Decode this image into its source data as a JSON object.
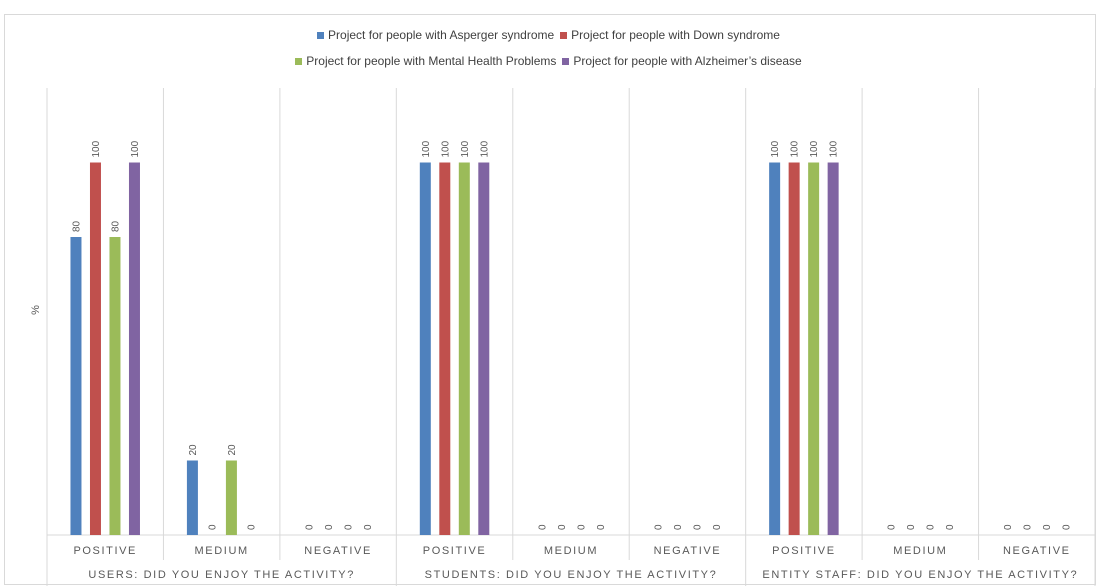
{
  "chart_data": {
    "type": "bar",
    "ylabel": "%",
    "ylim": [
      0,
      120
    ],
    "grid": false,
    "legend_position": "top",
    "groups": [
      {
        "label": "USERS: DID YOU ENJOY THE ACTIVITY?",
        "categories": [
          "POSITIVE",
          "MEDIUM",
          "NEGATIVE"
        ]
      },
      {
        "label": "STUDENTS: DID YOU ENJOY THE ACTIVITY?",
        "categories": [
          "POSITIVE",
          "MEDIUM",
          "NEGATIVE"
        ]
      },
      {
        "label": "ENTITY STAFF: DID YOU ENJOY THE ACTIVITY?",
        "categories": [
          "POSITIVE",
          "MEDIUM",
          "NEGATIVE"
        ]
      }
    ],
    "series": [
      {
        "name": "Project for people with Asperger syndrome",
        "color": "#4f81bd",
        "values": [
          80,
          20,
          0,
          100,
          0,
          0,
          100,
          0,
          0
        ]
      },
      {
        "name": "Project for people with Down syndrome",
        "color": "#c0504d",
        "values": [
          100,
          0,
          0,
          100,
          0,
          0,
          100,
          0,
          0
        ]
      },
      {
        "name": "Project for people with Mental Health Problems",
        "color": "#9bbb59",
        "values": [
          80,
          20,
          0,
          100,
          0,
          0,
          100,
          0,
          0
        ]
      },
      {
        "name": "Project for people with Alzheimer’s disease",
        "color": "#8064a2",
        "values": [
          100,
          0,
          0,
          100,
          0,
          0,
          100,
          0,
          0
        ]
      }
    ]
  }
}
